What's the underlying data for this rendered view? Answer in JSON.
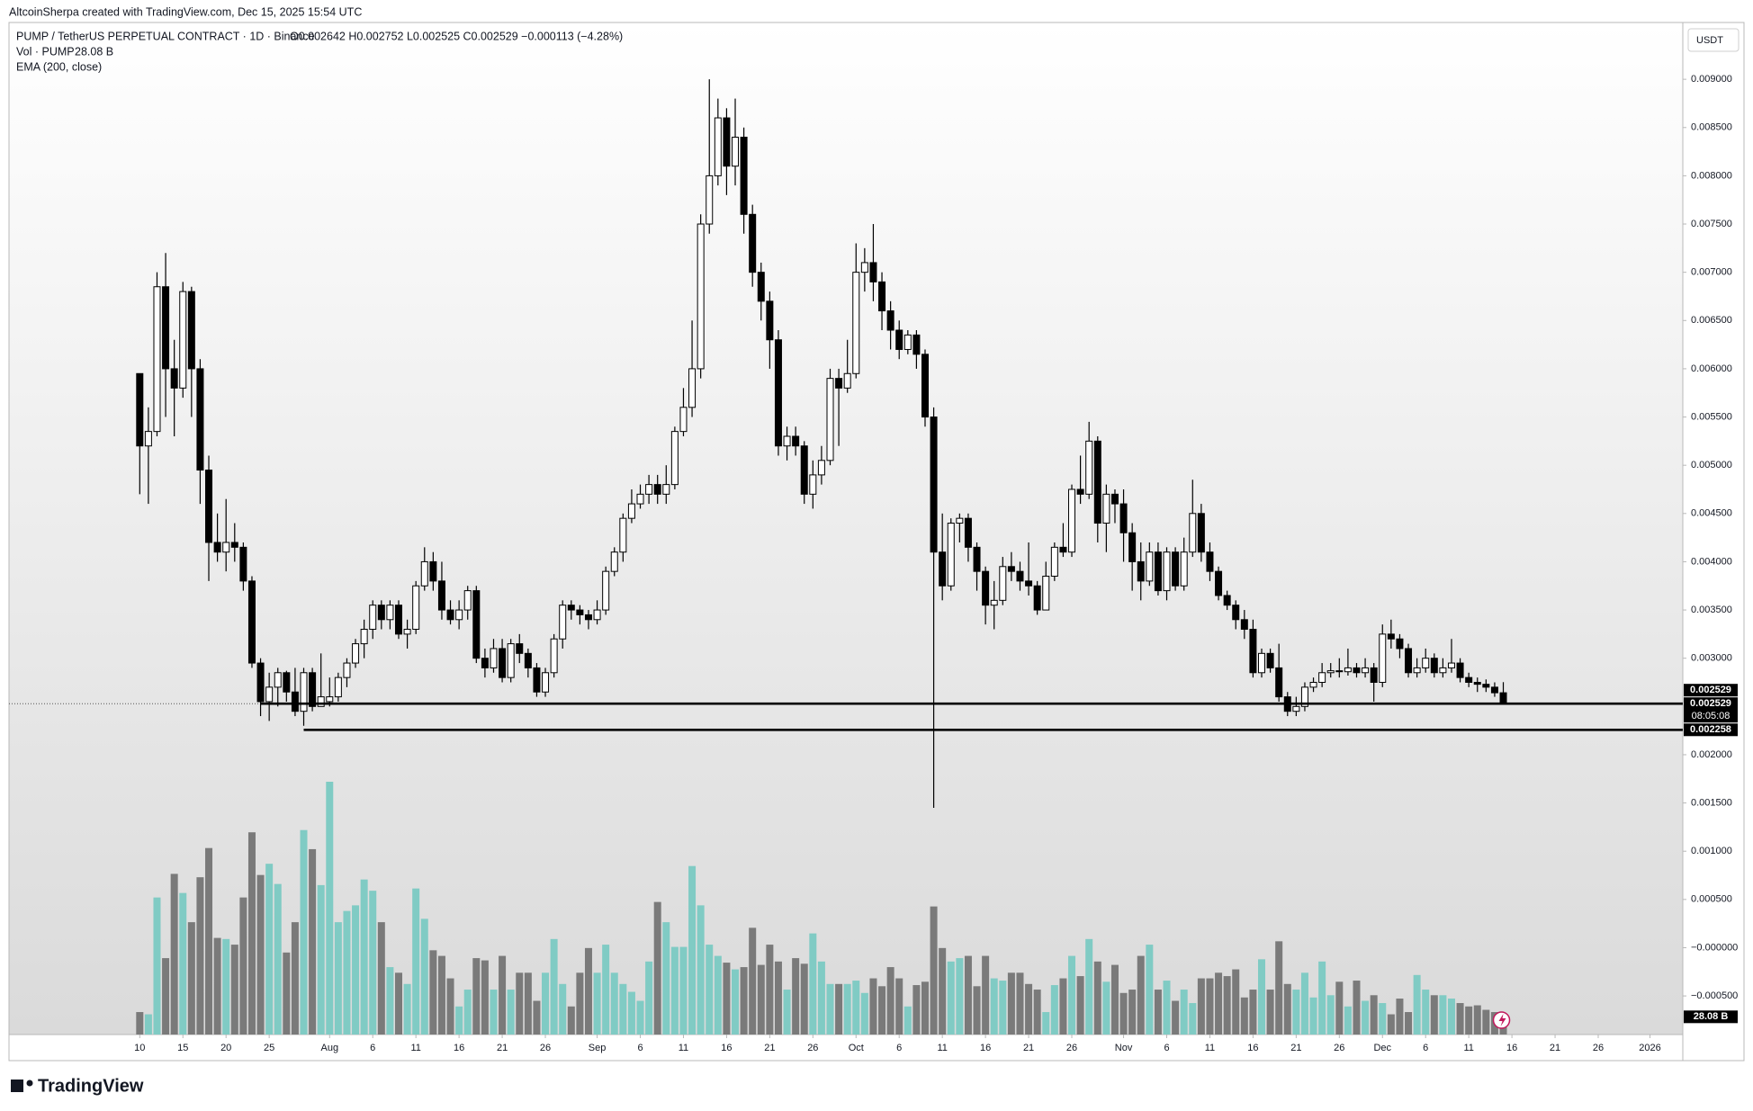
{
  "header": {
    "credit": "AltcoinSherpa created with TradingView.com, Dec 15, 2025 15:54 UTC",
    "symbol": "PUMP / TetherUS PERPETUAL CONTRACT · 1D · Binance",
    "ohlc": "O0.002642 H0.002752 L0.002525 C0.002529 −0.000113 (−4.28%)",
    "vol": "Vol · PUMP",
    "vol_value": "28.08 B",
    "ema": "EMA (200, close)"
  },
  "currency": "USDT",
  "logo": "TradingView",
  "chart_data": {
    "type": "candlestick",
    "open": [
      0.00595,
      0.0052,
      0.00535,
      0.00685,
      0.006,
      0.0058,
      0.0068,
      0.006,
      0.00495,
      0.0042,
      0.0041,
      0.0042,
      0.00415,
      0.0038,
      0.00295,
      0.00255,
      0.0027,
      0.00285,
      0.00265,
      0.00245,
      0.00285,
      0.0025,
      0.00255,
      0.0026,
      0.0028,
      0.00295,
      0.00315,
      0.0033,
      0.00355,
      0.0034,
      0.00355,
      0.00325,
      0.0033,
      0.00375,
      0.004,
      0.0038,
      0.0035,
      0.0034,
      0.0035,
      0.0037,
      0.003,
      0.0029,
      0.0031,
      0.0028,
      0.00315,
      0.00305,
      0.0029,
      0.00265,
      0.00285,
      0.0032,
      0.00355,
      0.0035,
      0.00345,
      0.0034,
      0.0035,
      0.0039,
      0.0041,
      0.00445,
      0.0046,
      0.0047,
      0.0048,
      0.0047,
      0.0048,
      0.00535,
      0.0056,
      0.006,
      0.0075,
      0.008,
      0.0086,
      0.0081,
      0.0084,
      0.0076,
      0.007,
      0.0067,
      0.0063,
      0.0052,
      0.0053,
      0.0052,
      0.0047,
      0.0049,
      0.00505,
      0.0059,
      0.0058,
      0.00595,
      0.007,
      0.0071,
      0.0069,
      0.0066,
      0.0064,
      0.0062,
      0.00635,
      0.00615,
      0.0055,
      0.0041,
      0.00375,
      0.0044,
      0.00445,
      0.00415,
      0.0039,
      0.00355,
      0.0036,
      0.00395,
      0.0039,
      0.0038,
      0.00375,
      0.0035,
      0.00385,
      0.00415,
      0.0041,
      0.00475,
      0.0047,
      0.00525,
      0.0044,
      0.0047,
      0.0046,
      0.0043,
      0.004,
      0.0038,
      0.0041,
      0.0037,
      0.0041,
      0.00375,
      0.0041,
      0.0045,
      0.0041,
      0.0039,
      0.00365,
      0.00355,
      0.0034,
      0.0033,
      0.00285,
      0.00305,
      0.0029,
      0.0026,
      0.00245,
      0.0025,
      0.0027,
      0.00275,
      0.00285,
      0.00287,
      0.00286,
      0.0029,
      0.00285,
      0.0029,
      0.00275,
      0.00325,
      0.0032,
      0.0031,
      0.00285,
      0.0029,
      0.003,
      0.00285,
      0.0029,
      0.00295,
      0.0028,
      0.00275,
      0.00273,
      0.0027,
      0.002642
    ],
    "high": [
      0.00595,
      0.0056,
      0.007,
      0.0072,
      0.0063,
      0.0069,
      0.00685,
      0.0061,
      0.0051,
      0.0045,
      0.00465,
      0.0044,
      0.0042,
      0.00385,
      0.003,
      0.00285,
      0.0029,
      0.00287,
      0.0029,
      0.0029,
      0.0029,
      0.00305,
      0.0028,
      0.00285,
      0.003,
      0.0032,
      0.0034,
      0.0036,
      0.0036,
      0.0036,
      0.0036,
      0.0034,
      0.0038,
      0.00415,
      0.0041,
      0.004,
      0.0036,
      0.0036,
      0.00375,
      0.00375,
      0.0031,
      0.0032,
      0.0032,
      0.0032,
      0.00325,
      0.0031,
      0.00295,
      0.0029,
      0.00325,
      0.0036,
      0.0036,
      0.00355,
      0.0035,
      0.0036,
      0.00395,
      0.00415,
      0.0045,
      0.00475,
      0.0048,
      0.0049,
      0.0049,
      0.005,
      0.0054,
      0.0058,
      0.0065,
      0.0076,
      0.009,
      0.0088,
      0.0087,
      0.0088,
      0.0085,
      0.0077,
      0.0071,
      0.0068,
      0.0064,
      0.0054,
      0.0054,
      0.00525,
      0.00505,
      0.0052,
      0.006,
      0.006,
      0.0063,
      0.0073,
      0.00725,
      0.0075,
      0.007,
      0.0067,
      0.0065,
      0.0064,
      0.0064,
      0.0062,
      0.0056,
      0.0045,
      0.00445,
      0.0045,
      0.0045,
      0.0042,
      0.00395,
      0.0038,
      0.00405,
      0.0041,
      0.004,
      0.0042,
      0.0038,
      0.004,
      0.0042,
      0.0044,
      0.0048,
      0.0051,
      0.00545,
      0.0053,
      0.0048,
      0.00475,
      0.00475,
      0.0044,
      0.0042,
      0.0042,
      0.0042,
      0.00415,
      0.00415,
      0.00425,
      0.00485,
      0.0046,
      0.0042,
      0.00395,
      0.0037,
      0.0036,
      0.0035,
      0.0034,
      0.0031,
      0.0031,
      0.00315,
      0.00265,
      0.0026,
      0.00275,
      0.0028,
      0.00295,
      0.00295,
      0.003,
      0.0031,
      0.00295,
      0.003,
      0.00295,
      0.00335,
      0.0034,
      0.00325,
      0.00315,
      0.003,
      0.0031,
      0.00305,
      0.003,
      0.0032,
      0.003,
      0.00285,
      0.0028,
      0.00278,
      0.00275,
      0.002752
    ],
    "low": [
      0.0047,
      0.0046,
      0.0053,
      0.0055,
      0.0053,
      0.0057,
      0.0055,
      0.0046,
      0.0038,
      0.004,
      0.0039,
      0.004,
      0.0037,
      0.0029,
      0.0024,
      0.00235,
      0.0025,
      0.00255,
      0.0024,
      0.0023,
      0.00245,
      0.0025,
      0.0025,
      0.00255,
      0.0027,
      0.0029,
      0.003,
      0.0032,
      0.0033,
      0.0033,
      0.0032,
      0.0031,
      0.00325,
      0.0037,
      0.0037,
      0.0034,
      0.00335,
      0.0033,
      0.0034,
      0.00295,
      0.0028,
      0.00285,
      0.00275,
      0.00275,
      0.00295,
      0.0028,
      0.0026,
      0.0026,
      0.0028,
      0.0031,
      0.0034,
      0.00335,
      0.0033,
      0.00335,
      0.00345,
      0.00385,
      0.004,
      0.0044,
      0.00455,
      0.0046,
      0.0046,
      0.0046,
      0.00475,
      0.0053,
      0.0055,
      0.0059,
      0.0074,
      0.0079,
      0.0078,
      0.0079,
      0.0074,
      0.00685,
      0.0065,
      0.006,
      0.0051,
      0.00505,
      0.0051,
      0.0046,
      0.00455,
      0.0048,
      0.005,
      0.0052,
      0.00575,
      0.0059,
      0.0068,
      0.0067,
      0.0064,
      0.0062,
      0.0061,
      0.00615,
      0.006,
      0.0054,
      0.00145,
      0.0036,
      0.0037,
      0.0042,
      0.004,
      0.0037,
      0.00335,
      0.0033,
      0.00355,
      0.0038,
      0.0037,
      0.00365,
      0.00345,
      0.0035,
      0.0038,
      0.00405,
      0.00405,
      0.0046,
      0.00465,
      0.0042,
      0.0041,
      0.0044,
      0.004,
      0.0037,
      0.0036,
      0.00375,
      0.00365,
      0.0036,
      0.0037,
      0.0037,
      0.00405,
      0.004,
      0.0038,
      0.0036,
      0.0035,
      0.0033,
      0.0032,
      0.0028,
      0.0028,
      0.00285,
      0.00255,
      0.0024,
      0.0024,
      0.00245,
      0.00265,
      0.0027,
      0.0028,
      0.0028,
      0.00282,
      0.0028,
      0.0028,
      0.00255,
      0.0027,
      0.0031,
      0.003,
      0.0028,
      0.0028,
      0.00285,
      0.0028,
      0.0028,
      0.00285,
      0.00275,
      0.0027,
      0.00265,
      0.00265,
      0.0026,
      0.002525
    ],
    "close": [
      0.0052,
      0.00535,
      0.00685,
      0.006,
      0.0058,
      0.0068,
      0.006,
      0.00495,
      0.0042,
      0.0041,
      0.0042,
      0.00415,
      0.0038,
      0.00295,
      0.00255,
      0.0027,
      0.00285,
      0.00265,
      0.00245,
      0.00285,
      0.0025,
      0.0026,
      0.0026,
      0.0028,
      0.00295,
      0.00315,
      0.0033,
      0.00355,
      0.0034,
      0.00355,
      0.00325,
      0.0033,
      0.00375,
      0.004,
      0.0038,
      0.0035,
      0.0034,
      0.0035,
      0.0037,
      0.003,
      0.0029,
      0.0031,
      0.0028,
      0.00315,
      0.00305,
      0.0029,
      0.00265,
      0.00285,
      0.0032,
      0.00355,
      0.0035,
      0.00345,
      0.0034,
      0.0035,
      0.0039,
      0.0041,
      0.00445,
      0.0046,
      0.0047,
      0.0048,
      0.0047,
      0.0048,
      0.00535,
      0.0056,
      0.006,
      0.0075,
      0.008,
      0.0086,
      0.0081,
      0.0084,
      0.0076,
      0.007,
      0.0067,
      0.0063,
      0.0052,
      0.0053,
      0.0052,
      0.0047,
      0.0049,
      0.00505,
      0.0059,
      0.0058,
      0.00595,
      0.007,
      0.0071,
      0.0069,
      0.0066,
      0.0064,
      0.0062,
      0.00635,
      0.00615,
      0.0055,
      0.0041,
      0.00375,
      0.0044,
      0.00445,
      0.00415,
      0.0039,
      0.00355,
      0.0036,
      0.00395,
      0.0039,
      0.0038,
      0.00375,
      0.0035,
      0.00385,
      0.00415,
      0.0041,
      0.00475,
      0.0047,
      0.00525,
      0.0044,
      0.0047,
      0.0046,
      0.0043,
      0.004,
      0.0038,
      0.0041,
      0.0037,
      0.0041,
      0.00375,
      0.0041,
      0.0045,
      0.0041,
      0.0039,
      0.00365,
      0.00355,
      0.0034,
      0.0033,
      0.00285,
      0.00305,
      0.0029,
      0.0026,
      0.00245,
      0.0025,
      0.0027,
      0.00275,
      0.00285,
      0.00287,
      0.00286,
      0.0029,
      0.00285,
      0.0029,
      0.00275,
      0.00325,
      0.0032,
      0.0031,
      0.00285,
      0.0029,
      0.003,
      0.00285,
      0.0029,
      0.00295,
      0.0028,
      0.00275,
      0.00273,
      0.0027,
      0.002642,
      0.002529
    ],
    "volume": [
      60,
      54,
      366,
      204,
      429,
      378,
      300,
      420,
      498,
      258,
      255,
      240,
      366,
      540,
      426,
      456,
      402,
      219,
      300,
      546,
      495,
      399,
      675,
      300,
      330,
      345,
      414,
      384,
      300,
      180,
      165,
      135,
      390,
      309,
      225,
      210,
      150,
      75,
      120,
      204,
      198,
      120,
      210,
      120,
      165,
      165,
      90,
      165,
      255,
      135,
      75,
      165,
      231,
      165,
      240,
      165,
      135,
      114,
      90,
      195,
      354,
      300,
      234,
      234,
      450,
      345,
      240,
      210,
      192,
      174,
      180,
      285,
      186,
      240,
      195,
      120,
      204,
      189,
      270,
      195,
      135,
      135,
      135,
      144,
      111,
      150,
      129,
      180,
      150,
      75,
      132,
      141,
      342,
      231,
      195,
      204,
      210,
      129,
      210,
      150,
      144,
      165,
      165,
      135,
      120,
      60,
      132,
      150,
      210,
      156,
      255,
      195,
      141,
      186,
      111,
      120,
      210,
      240,
      120,
      144,
      90,
      120,
      84,
      150,
      150,
      165,
      156,
      174,
      99,
      120,
      201,
      120,
      249,
      135,
      120,
      165,
      99,
      195,
      105,
      141,
      75,
      144,
      90,
      105,
      84,
      54,
      96,
      60,
      159,
      120,
      105,
      105,
      96,
      84,
      75,
      78,
      66,
      60,
      28.08
    ],
    "volume_label": "28.08 B",
    "up_color": "#ffffff",
    "down_color": "#000000",
    "border_color": "#000000",
    "volume_up_color": "#80cbc4",
    "volume_down_color": "#7a7a7a",
    "ylim": [
      -0.0009,
      0.00957
    ],
    "yticks": [
      {
        "value": 0.009,
        "label": "0.009000"
      },
      {
        "value": 0.0085,
        "label": "0.008500"
      },
      {
        "value": 0.008,
        "label": "0.008000"
      },
      {
        "value": 0.0075,
        "label": "0.007500"
      },
      {
        "value": 0.007,
        "label": "0.007000"
      },
      {
        "value": 0.0065,
        "label": "0.006500"
      },
      {
        "value": 0.006,
        "label": "0.006000"
      },
      {
        "value": 0.0055,
        "label": "0.005500"
      },
      {
        "value": 0.005,
        "label": "0.005000"
      },
      {
        "value": 0.0045,
        "label": "0.004500"
      },
      {
        "value": 0.004,
        "label": "0.004000"
      },
      {
        "value": 0.0035,
        "label": "0.003500"
      },
      {
        "value": 0.003,
        "label": "0.003000"
      },
      {
        "value": 0.002,
        "label": "0.002000"
      },
      {
        "value": 0.0015,
        "label": "0.001500"
      },
      {
        "value": 0.001,
        "label": "0.001000"
      },
      {
        "value": 0.0005,
        "label": "0.000500"
      },
      {
        "value": 0,
        "label": "−0.000000"
      },
      {
        "value": -0.0005,
        "label": "−0.000500"
      }
    ],
    "xticks": [
      {
        "value": 0,
        "label": "10"
      },
      {
        "value": 5,
        "label": "15"
      },
      {
        "value": 10,
        "label": "20"
      },
      {
        "value": 15,
        "label": "25"
      },
      {
        "value": 22,
        "label": "Aug"
      },
      {
        "value": 27,
        "label": "6"
      },
      {
        "value": 32,
        "label": "11"
      },
      {
        "value": 37,
        "label": "16"
      },
      {
        "value": 42,
        "label": "21"
      },
      {
        "value": 47,
        "label": "26"
      },
      {
        "value": 53,
        "label": "Sep"
      },
      {
        "value": 58,
        "label": "6"
      },
      {
        "value": 63,
        "label": "11"
      },
      {
        "value": 68,
        "label": "16"
      },
      {
        "value": 73,
        "label": "21"
      },
      {
        "value": 78,
        "label": "26"
      },
      {
        "value": 83,
        "label": "Oct"
      },
      {
        "value": 88,
        "label": "6"
      },
      {
        "value": 93,
        "label": "11"
      },
      {
        "value": 98,
        "label": "16"
      },
      {
        "value": 103,
        "label": "21"
      },
      {
        "value": 108,
        "label": "26"
      },
      {
        "value": 114,
        "label": "Nov"
      },
      {
        "value": 119,
        "label": "6"
      },
      {
        "value": 124,
        "label": "11"
      },
      {
        "value": 129,
        "label": "16"
      },
      {
        "value": 134,
        "label": "21"
      },
      {
        "value": 139,
        "label": "26"
      },
      {
        "value": 144,
        "label": "Dec"
      },
      {
        "value": 149,
        "label": "6"
      },
      {
        "value": 154,
        "label": "11"
      },
      {
        "value": 159,
        "label": "16"
      },
      {
        "value": 164,
        "label": "21"
      },
      {
        "value": 169,
        "label": "26"
      },
      {
        "value": 175,
        "label": "2026"
      }
    ],
    "levels": [
      {
        "value": 0.002529,
        "from": 14
      },
      {
        "value": 0.002258,
        "from": 19
      }
    ],
    "countdown": "08:05:08",
    "grid": false
  }
}
